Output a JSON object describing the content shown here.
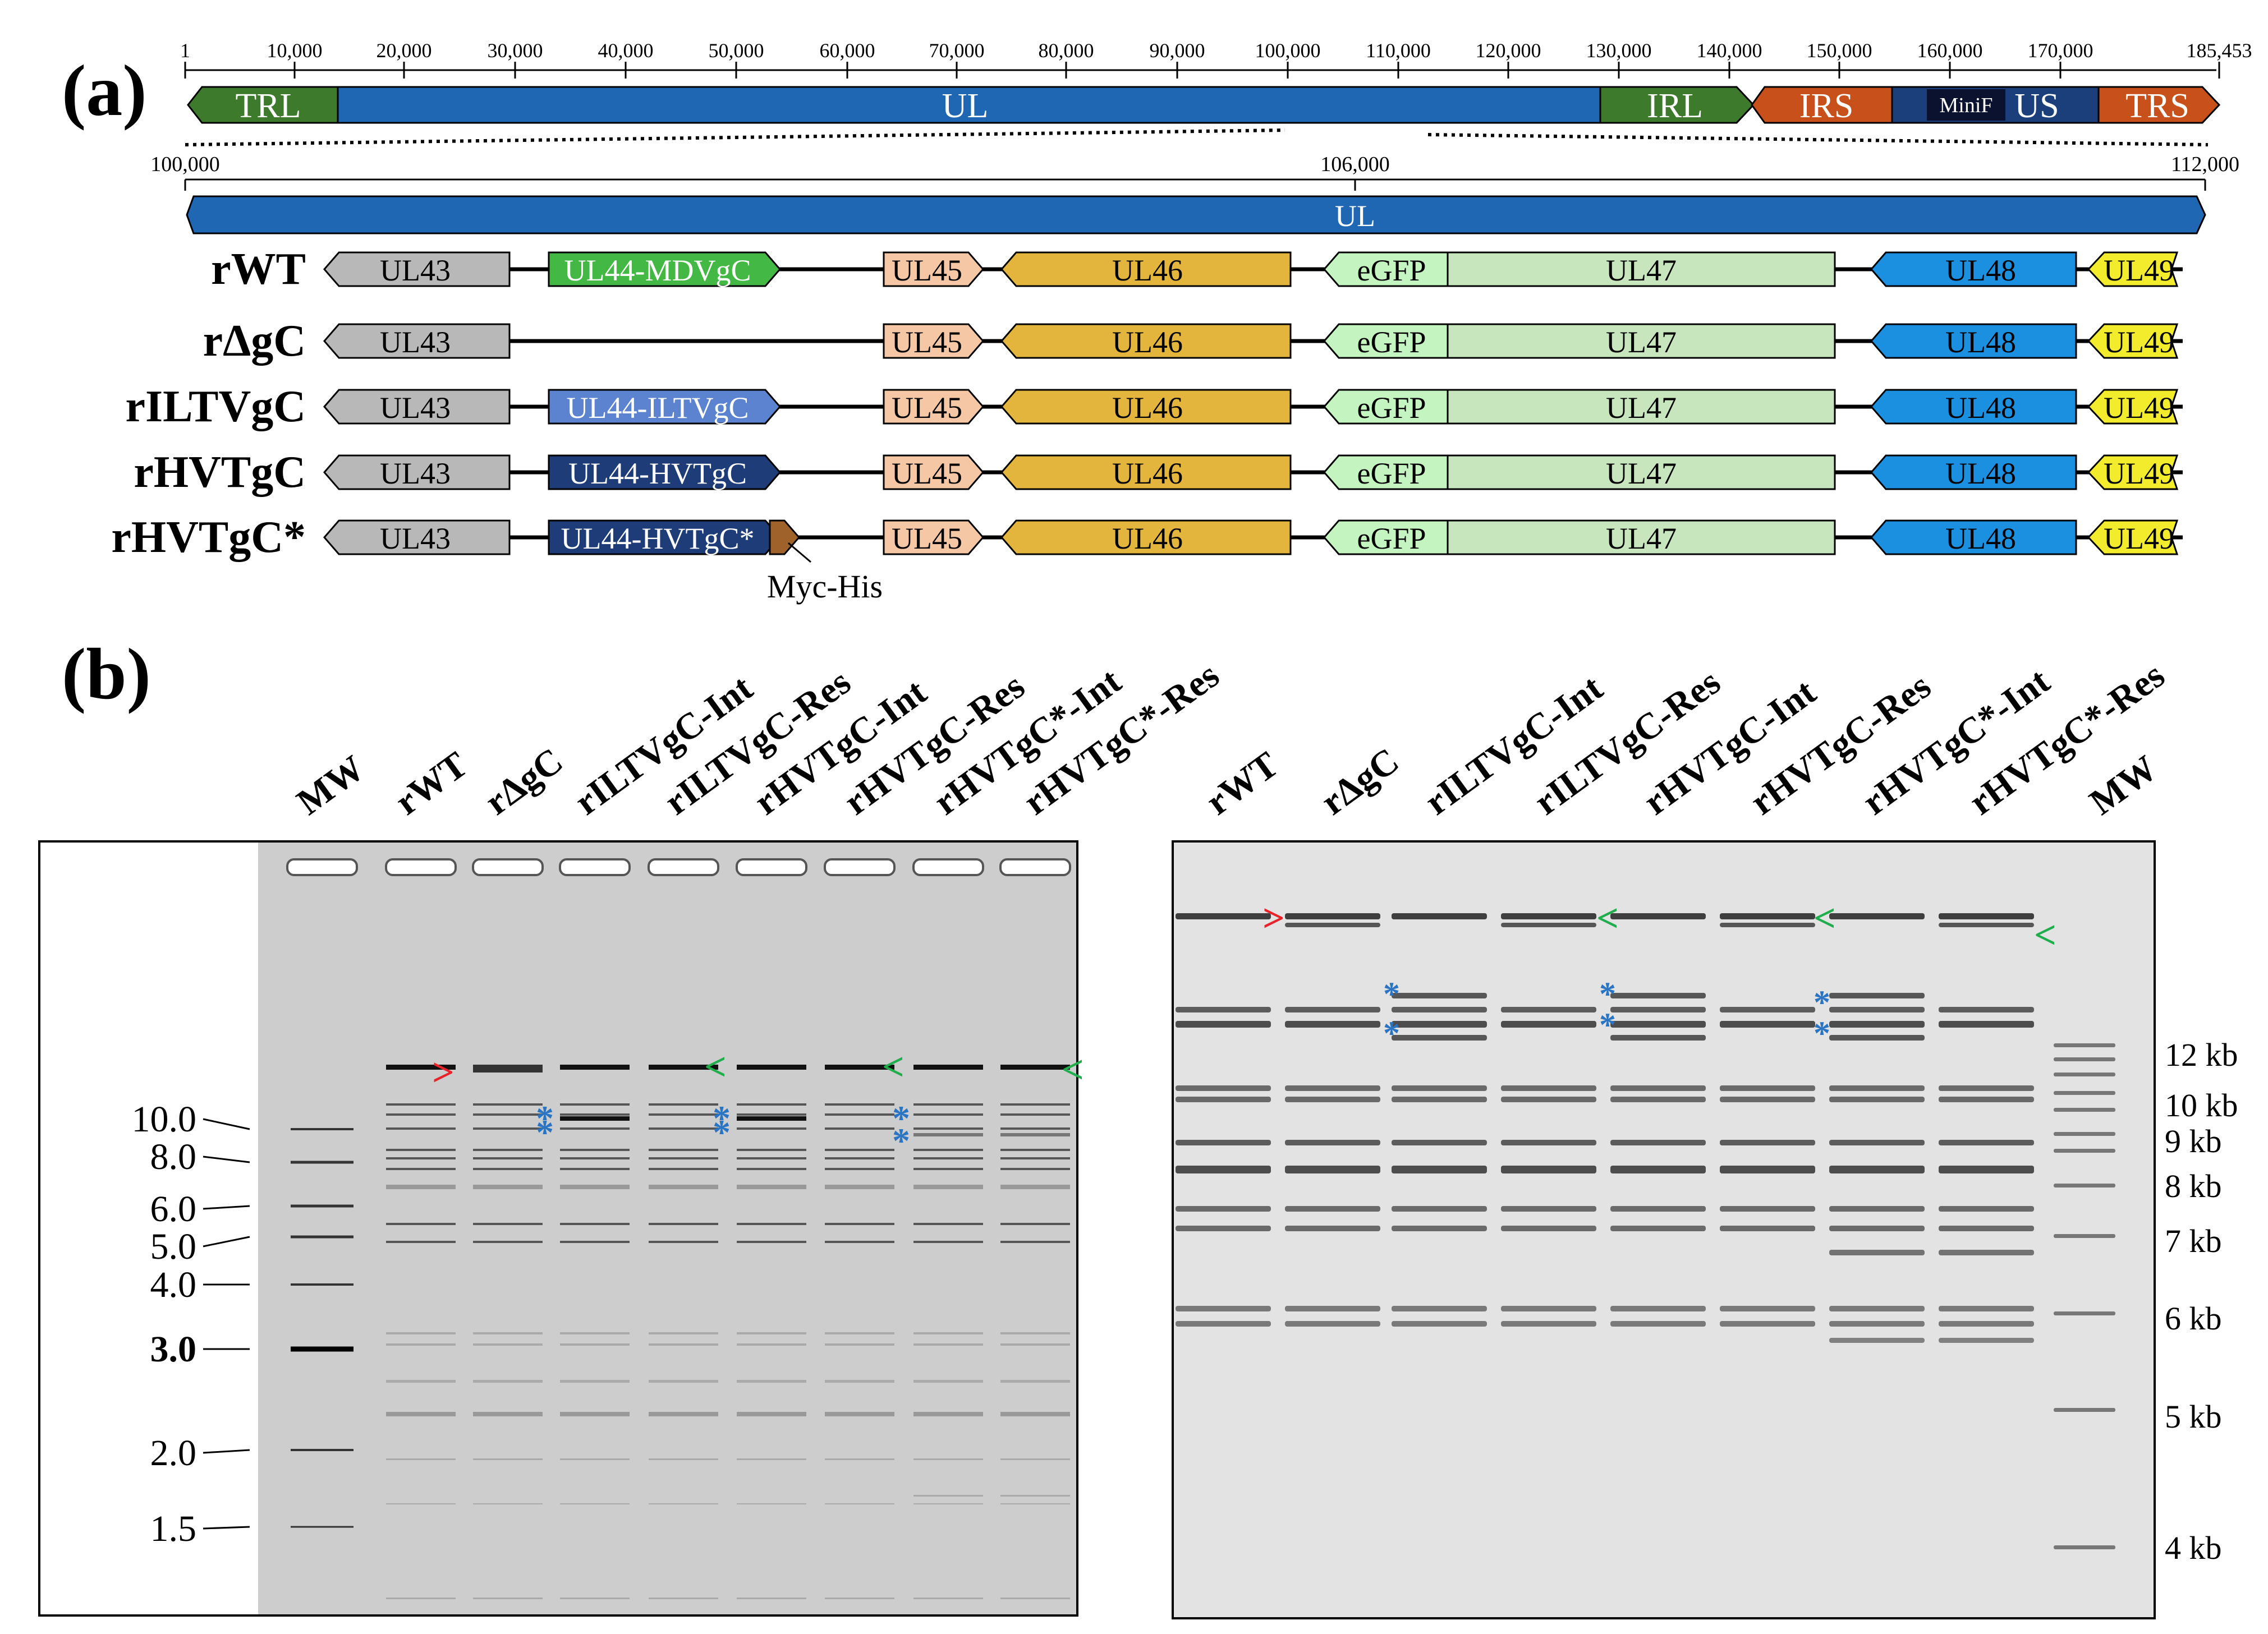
{
  "panel_a": {
    "label": "(a)",
    "genome_ticks": [
      "1",
      "10,000",
      "20,000",
      "30,000",
      "40,000",
      "50,000",
      "60,000",
      "70,000",
      "80,000",
      "90,000",
      "100,000",
      "110,000",
      "120,000",
      "130,000",
      "140,000",
      "150,000",
      "160,000",
      "170,000",
      "185,453"
    ],
    "regions": [
      {
        "label": "TRL",
        "color": "#3e7a2b"
      },
      {
        "label": "UL",
        "color": "#1f66b3"
      },
      {
        "label": "IRL",
        "color": "#3e7a2b"
      },
      {
        "label": "IRS",
        "color": "#c8501a"
      },
      {
        "label": "MiniF",
        "color": "#0b1230"
      },
      {
        "label": "US",
        "color": "#1a3f7a"
      },
      {
        "label": "TRS",
        "color": "#c8501a"
      }
    ],
    "zoom_ticks": [
      "100,000",
      "106,000",
      "112,000"
    ],
    "zoom_region_label": "UL",
    "constructs": [
      {
        "name": "rWT",
        "gc_label": "UL44-MDVgC",
        "gc_color": "#44b844"
      },
      {
        "name": "rΔgC",
        "gc_label": "",
        "gc_color": ""
      },
      {
        "name": "rILTVgC",
        "gc_label": "UL44-ILTVgC",
        "gc_color": "#5b83cf"
      },
      {
        "name": "rHVTgC",
        "gc_label": "UL44-HVTgC",
        "gc_color": "#1e3c78"
      },
      {
        "name": "rHVTgC*",
        "gc_label": "UL44-HVTgC*",
        "gc_color": "#1e3c78"
      }
    ],
    "genes": [
      "UL43",
      "UL45",
      "UL46",
      "eGFP",
      "UL47",
      "UL48",
      "UL49"
    ],
    "tag_label": "Myc-His"
  },
  "panel_b": {
    "label": "(b)",
    "left_gel": {
      "lane_labels": [
        "MW",
        "rWT",
        "rΔgC",
        "rILTVgC-Int",
        "rILTVgC-Res",
        "rHVTgC-Int",
        "rHVTgC-Res",
        "rHVTgC*-Int",
        "rHVTgC*-Res"
      ],
      "ladder": [
        "10.0",
        "8.0",
        "6.0",
        "5.0",
        "4.0",
        "3.0",
        "2.0",
        "1.5"
      ]
    },
    "right_gel": {
      "lane_labels": [
        "rWT",
        "rΔgC",
        "rILTVgC-Int",
        "rILTVgC-Res",
        "rHVTgC-Int",
        "rHVTgC-Res",
        "rHVTgC*-Int",
        "rHVTgC*-Res",
        "MW"
      ],
      "ladder": [
        "12 kb",
        "10 kb",
        "9 kb",
        "8 kb",
        "7 kb",
        "6 kb",
        "5 kb",
        "4 kb"
      ]
    },
    "markers": {
      "red": ">",
      "green": "<",
      "star": "*"
    }
  },
  "colors": {
    "arrow_red": "#e8232a",
    "arrow_green": "#1fae4b",
    "star_blue": "#2a74c4"
  }
}
